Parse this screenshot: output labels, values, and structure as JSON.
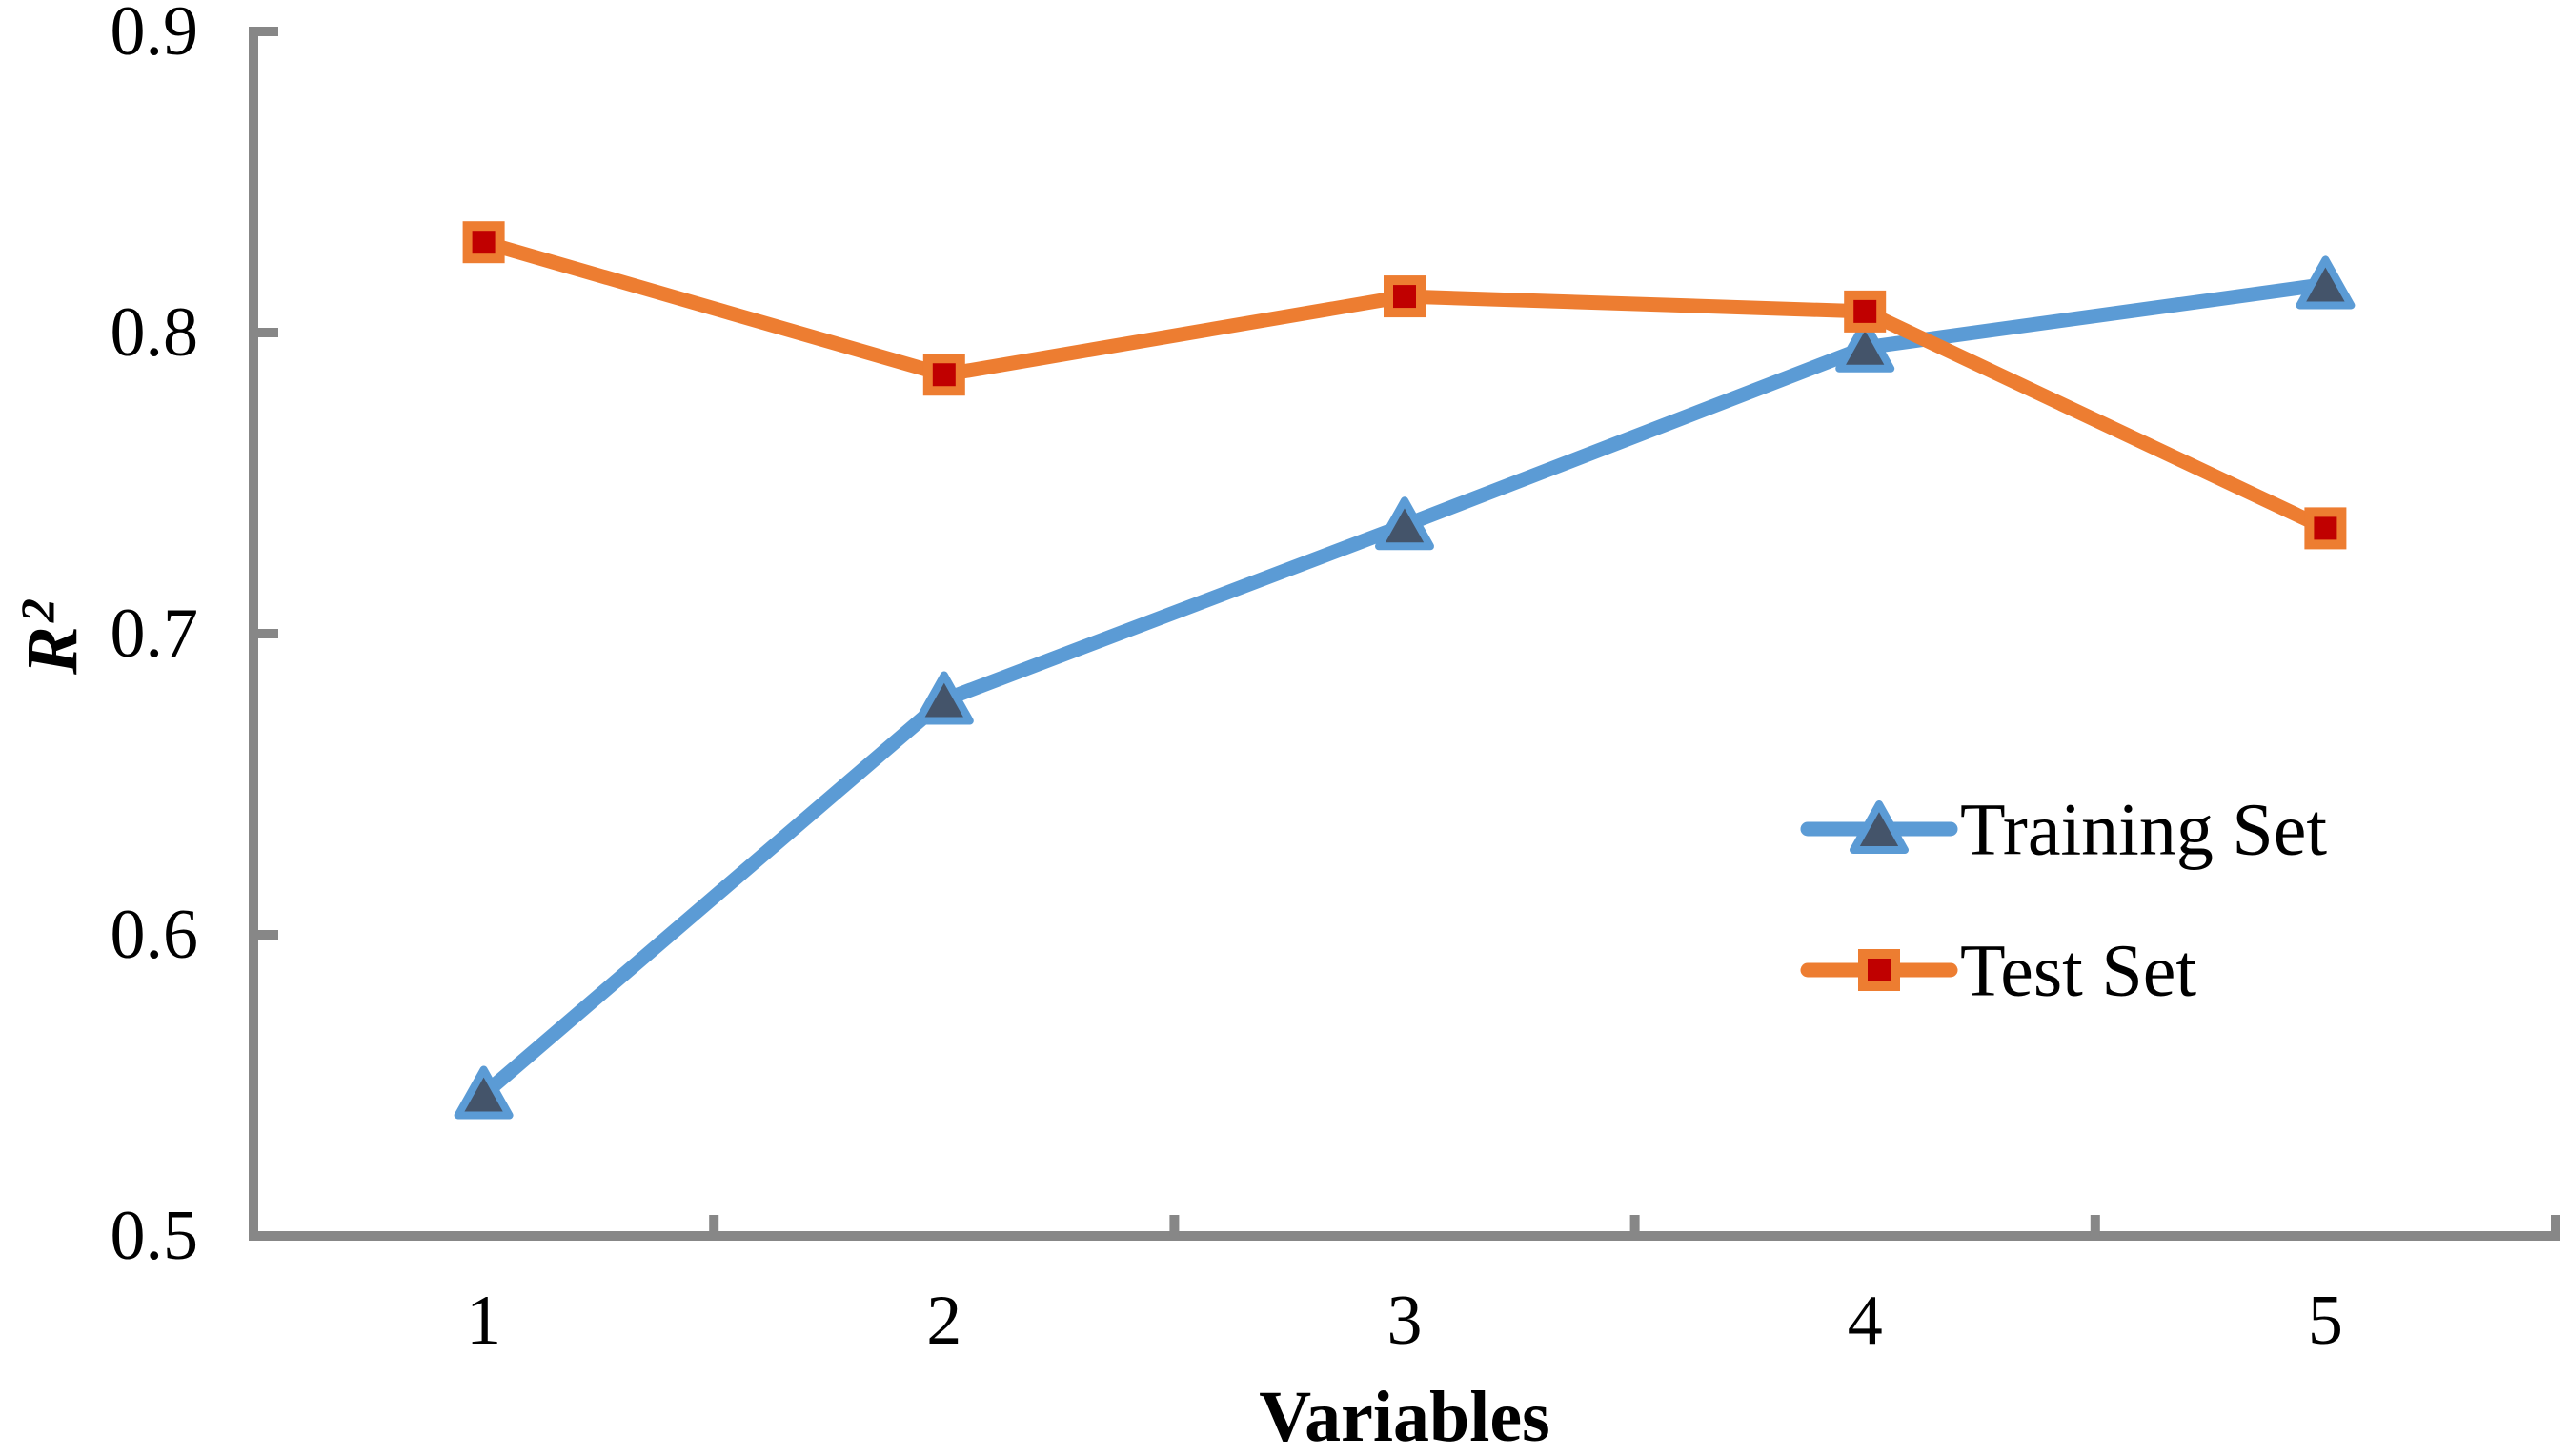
{
  "page": {
    "background": "#ffffff"
  },
  "chart_data": {
    "type": "line",
    "title": "",
    "xlabel": "Variables",
    "ylabel_base": "R",
    "ylabel_sup": "2",
    "categories": [
      "1",
      "2",
      "3",
      "4",
      "5"
    ],
    "series": [
      {
        "name": "Training Set",
        "marker": "triangle",
        "line_color": "#5B9BD5",
        "marker_fill": "#44546A",
        "marker_border": "#5B9BD5",
        "values": [
          0.547,
          0.678,
          0.736,
          0.795,
          0.816
        ]
      },
      {
        "name": "Test Set",
        "marker": "square",
        "line_color": "#ED7D31",
        "marker_fill": "#C00000",
        "marker_border": "#ED7D31",
        "values": [
          0.83,
          0.786,
          0.812,
          0.807,
          0.735
        ]
      }
    ],
    "ylim": [
      0.5,
      0.9
    ],
    "yticks": [
      "0.5",
      "0.6",
      "0.7",
      "0.8",
      "0.9"
    ],
    "grid": false,
    "legend_position": "center-right",
    "axis_color": "#878787",
    "text_color": "#000000"
  }
}
